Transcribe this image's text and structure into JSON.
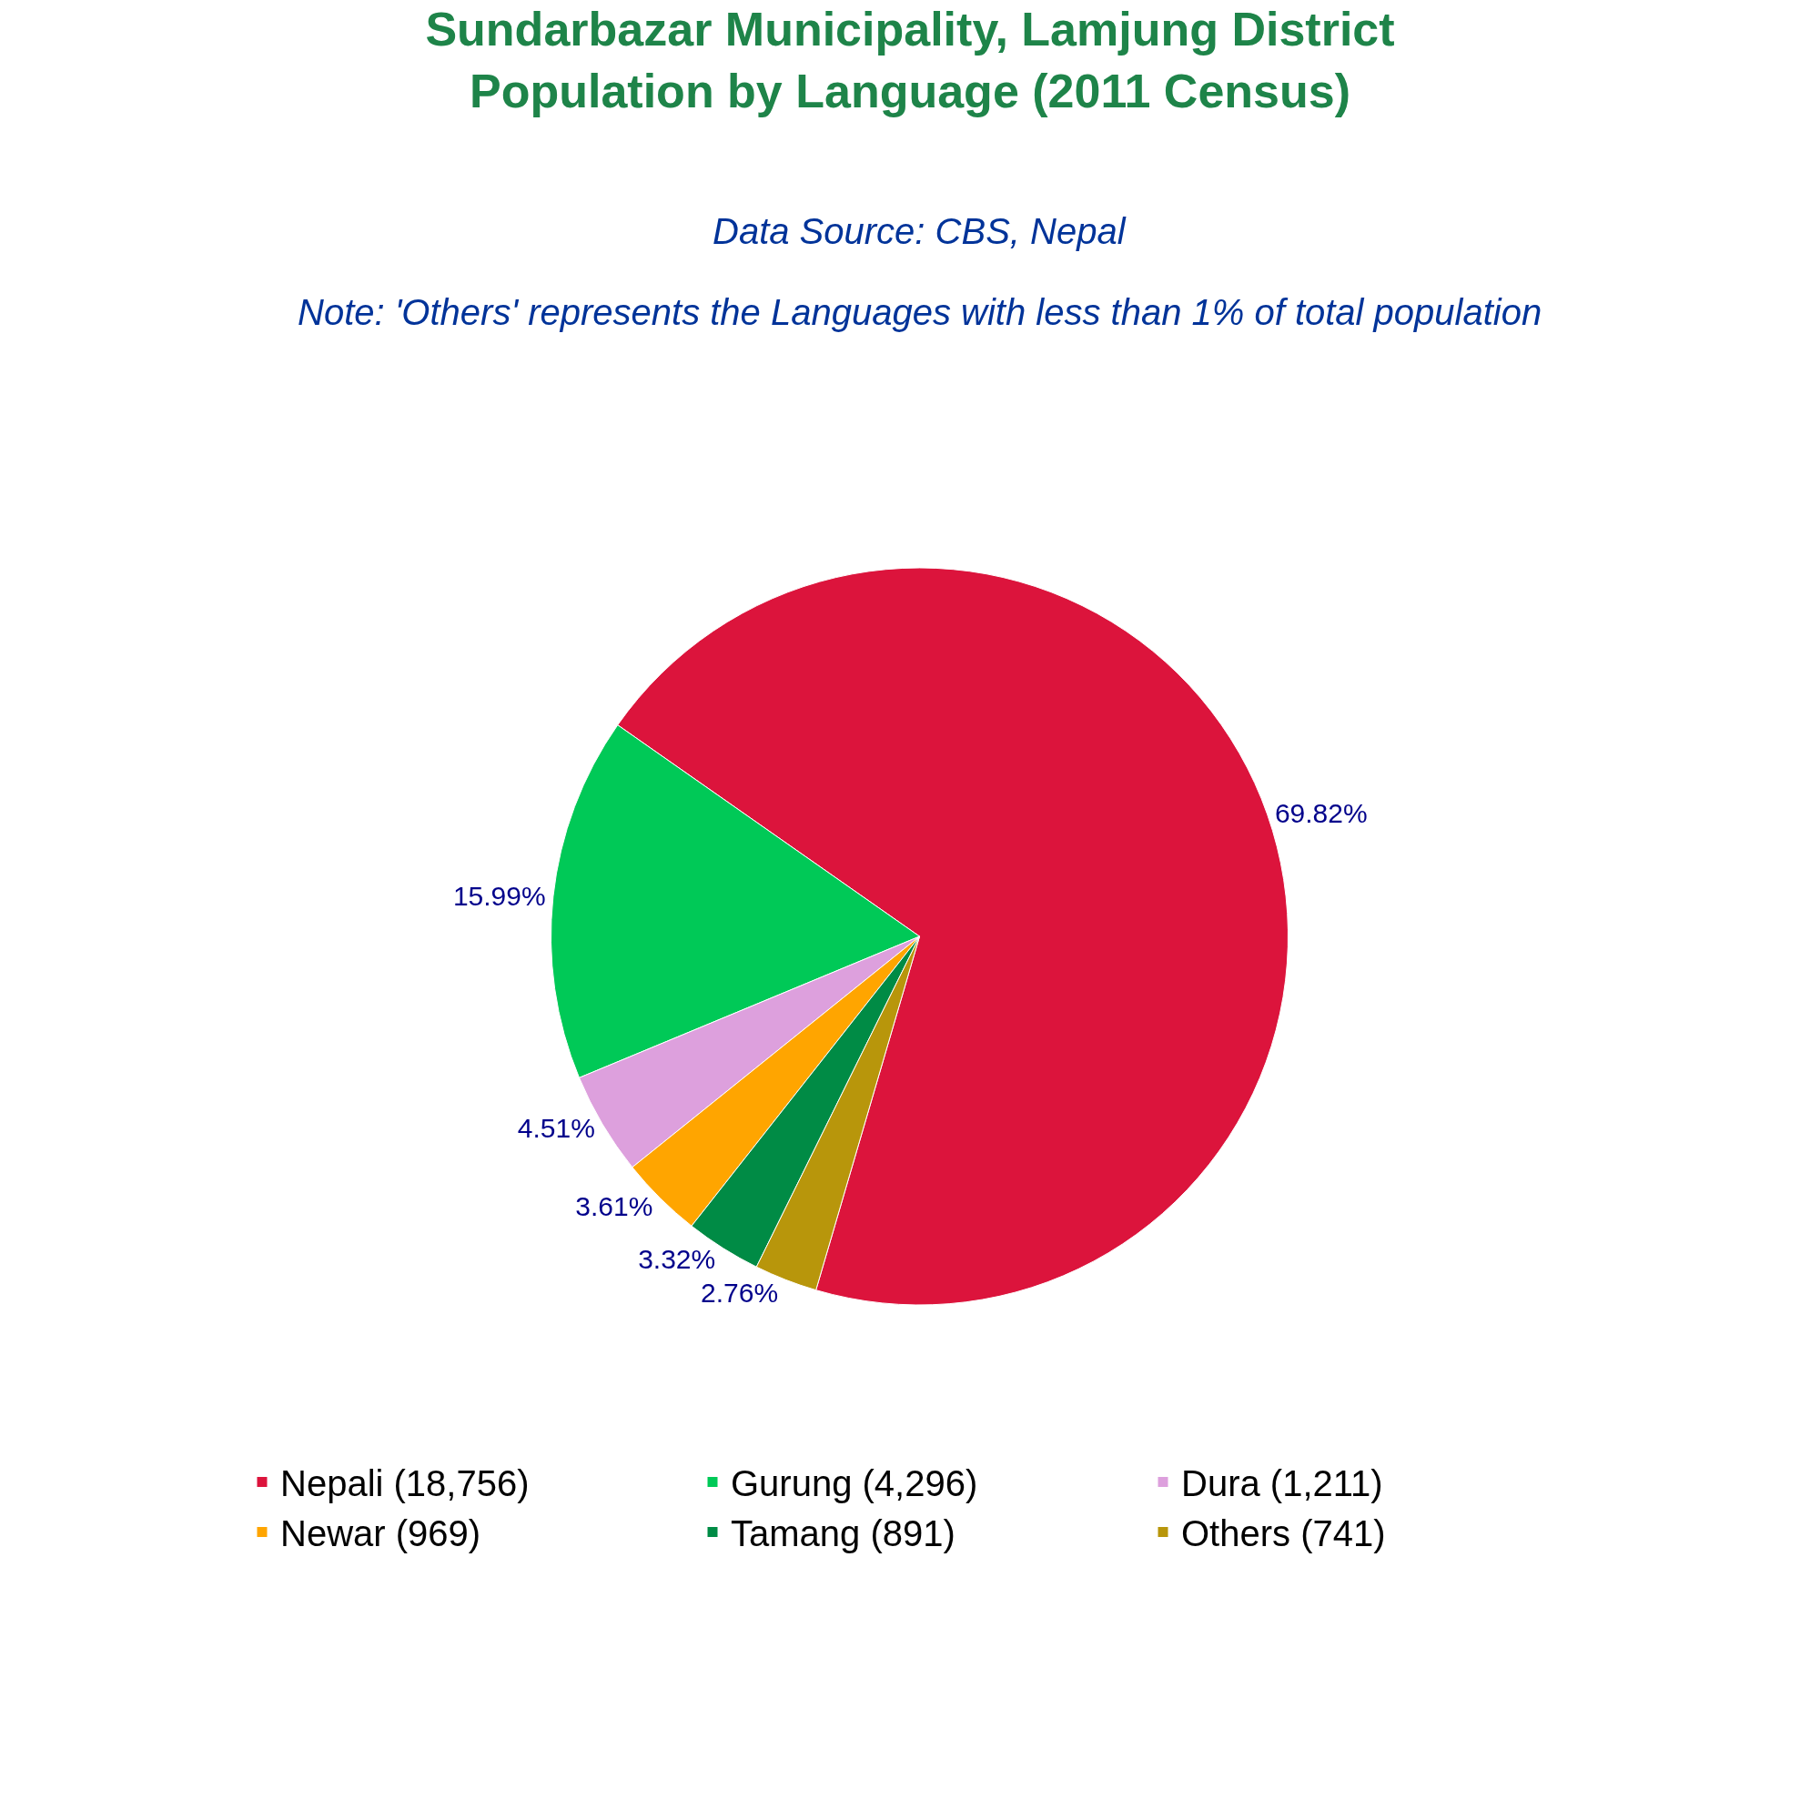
{
  "chart_data": {
    "type": "pie",
    "title": "Sundarbazar Municipality, Lamjung District\nPopulation by Language (2011 Census)",
    "subtitle": "Data Source: CBS, Nepal",
    "annotations": [
      "Note: 'Others' represents the Languages with less than 1% of total population"
    ],
    "categories": [
      "Nepali (18,756)",
      "Gurung (4,296)",
      "Dura (1,211)",
      "Newar (969)",
      "Tamang (891)",
      "Others (741)"
    ],
    "values": [
      69.82,
      15.99,
      4.51,
      3.61,
      3.32,
      2.76
    ],
    "value_labels": [
      "69.82%",
      "15.99%",
      "4.51%",
      "3.61%",
      "3.32%",
      "2.76%"
    ],
    "colors": [
      "#dc143c",
      "#00c957",
      "#dda0dd",
      "#ffa500",
      "#008b45",
      "#b8960b"
    ],
    "legend": "bottom"
  }
}
